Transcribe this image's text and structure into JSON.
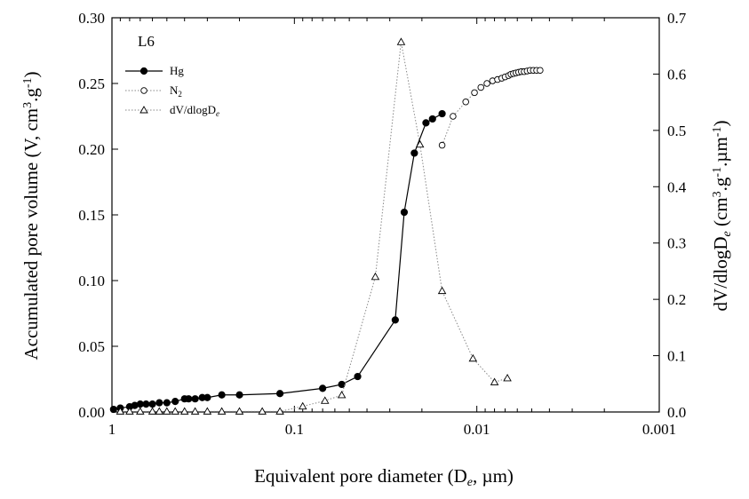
{
  "chart_data": {
    "type": "line",
    "title": "L6",
    "xlabel": "Equivalent pore diameter (D<sub>e</sub>, µm)",
    "x_scale": "log",
    "x_reversed": true,
    "xlim": [
      1,
      0.001
    ],
    "x_ticks": [
      1,
      0.1,
      0.01,
      0.001
    ],
    "x_tick_labels": [
      "1",
      "0.1",
      "0.01",
      "0.001"
    ],
    "y_left": {
      "label": "Accumulated pore volume (V, cm3.g-1)",
      "lim": [
        0,
        0.3
      ],
      "ticks": [
        0,
        0.05,
        0.1,
        0.15,
        0.2,
        0.25,
        0.3
      ],
      "tick_labels": [
        "0.00",
        "0.05",
        "0.10",
        "0.15",
        "0.20",
        "0.25",
        "0.30"
      ]
    },
    "y_right": {
      "label": "dV/dlogDe (cm3.g-1.µm-1)",
      "lim": [
        0,
        0.7
      ],
      "ticks": [
        0,
        0.1,
        0.2,
        0.3,
        0.4,
        0.5,
        0.6,
        0.7
      ],
      "tick_labels": [
        "0.0",
        "0.1",
        "0.2",
        "0.3",
        "0.4",
        "0.5",
        "0.6",
        "0.7"
      ]
    },
    "legend": {
      "position": "top-left"
    },
    "series": [
      {
        "name": "Hg",
        "axis": "left",
        "marker": "filled-circle",
        "line": "solid",
        "x": [
          0.98,
          0.9,
          0.8,
          0.75,
          0.7,
          0.65,
          0.6,
          0.55,
          0.5,
          0.45,
          0.4,
          0.38,
          0.35,
          0.32,
          0.3,
          0.25,
          0.2,
          0.12,
          0.07,
          0.055,
          0.045,
          0.028,
          0.025,
          0.022,
          0.019,
          0.0175,
          0.0155
        ],
        "values": [
          0.002,
          0.003,
          0.004,
          0.005,
          0.006,
          0.006,
          0.006,
          0.007,
          0.007,
          0.008,
          0.01,
          0.01,
          0.01,
          0.011,
          0.011,
          0.013,
          0.013,
          0.014,
          0.018,
          0.021,
          0.027,
          0.07,
          0.152,
          0.197,
          0.22,
          0.223,
          0.227
        ]
      },
      {
        "name": "N2",
        "axis": "left",
        "marker": "open-circle",
        "line": "dotted",
        "x": [
          0.0155,
          0.0135,
          0.0115,
          0.0103,
          0.0095,
          0.0088,
          0.0082,
          0.0077,
          0.0073,
          0.007,
          0.0067,
          0.0065,
          0.0063,
          0.0061,
          0.0059,
          0.0057,
          0.0055,
          0.0053,
          0.0051,
          0.0049,
          0.0047,
          0.0045
        ],
        "values": [
          0.203,
          0.225,
          0.236,
          0.243,
          0.247,
          0.25,
          0.252,
          0.253,
          0.254,
          0.255,
          0.256,
          0.257,
          0.2575,
          0.258,
          0.2585,
          0.259,
          0.259,
          0.2595,
          0.26,
          0.26,
          0.26,
          0.26
        ]
      },
      {
        "name": "dV/dlogDe",
        "axis": "right",
        "marker": "open-triangle",
        "line": "dotted",
        "x": [
          0.9,
          0.8,
          0.7,
          0.6,
          0.55,
          0.5,
          0.45,
          0.4,
          0.35,
          0.3,
          0.25,
          0.2,
          0.15,
          0.12,
          0.09,
          0.068,
          0.055,
          0.036,
          0.026,
          0.0205,
          0.0155,
          0.0105,
          0.008,
          0.0068
        ],
        "values": [
          0.001,
          0.001,
          0.001,
          0.001,
          0.001,
          0.001,
          0.001,
          0.001,
          0.001,
          0.001,
          0.001,
          0.001,
          0.001,
          0.001,
          0.01,
          0.02,
          0.03,
          0.24,
          0.657,
          0.475,
          0.215,
          0.095,
          0.053,
          0.06
        ]
      }
    ]
  }
}
